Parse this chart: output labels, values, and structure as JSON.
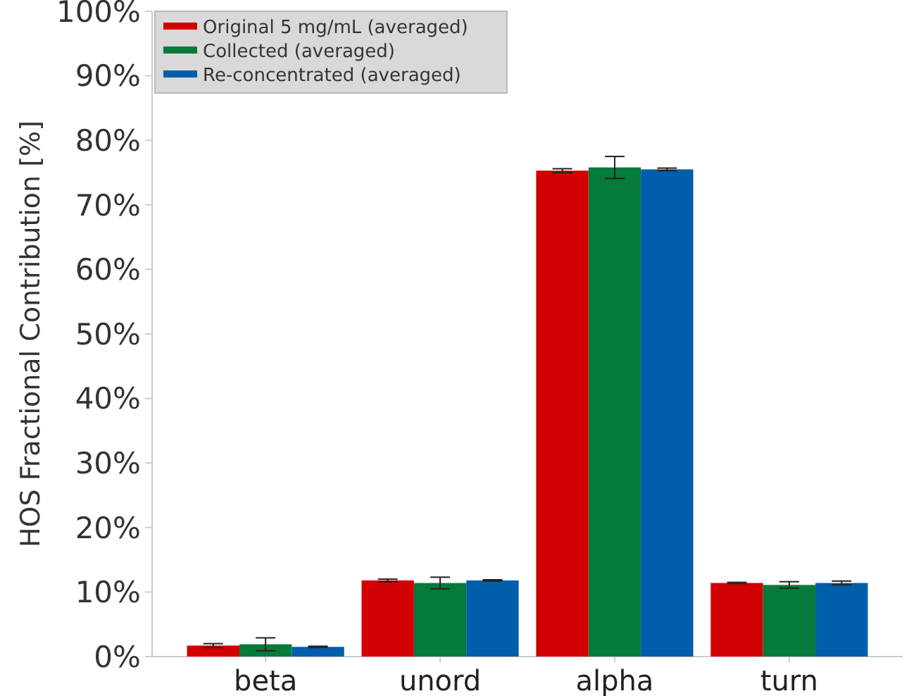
{
  "chart_data": {
    "type": "bar",
    "ylabel": "HOS Fractional Contribution [%]",
    "categories": [
      "beta",
      "unord",
      "alpha",
      "turn"
    ],
    "series": [
      {
        "name": "Original 5 mg/mL (averaged)",
        "color": "#d20000",
        "values": [
          1.7,
          11.8,
          75.3,
          11.4
        ],
        "errors": [
          0.3,
          0.2,
          0.3,
          0.1
        ]
      },
      {
        "name": "Collected (averaged)",
        "color": "#067a3a",
        "values": [
          1.9,
          11.4,
          75.8,
          11.1
        ],
        "errors": [
          1.0,
          0.9,
          1.7,
          0.5
        ]
      },
      {
        "name": "Re-concentrated (averaged)",
        "color": "#005eaa",
        "values": [
          1.5,
          11.8,
          75.5,
          11.4
        ],
        "errors": [
          0.1,
          0.1,
          0.2,
          0.3
        ]
      }
    ],
    "ylim": [
      0,
      100
    ],
    "yticks": [
      {
        "value": 0,
        "label": "0%"
      },
      {
        "value": 10,
        "label": "10%"
      },
      {
        "value": 20,
        "label": "20%"
      },
      {
        "value": 30,
        "label": "30%"
      },
      {
        "value": 40,
        "label": "40%"
      },
      {
        "value": 50,
        "label": "50%"
      },
      {
        "value": 60,
        "label": "60%"
      },
      {
        "value": 70,
        "label": "70%"
      },
      {
        "value": 80,
        "label": "80%"
      },
      {
        "value": 90,
        "label": "90%"
      },
      {
        "value": 100,
        "label": "100%"
      }
    ],
    "grid": false,
    "legend": "top left"
  }
}
